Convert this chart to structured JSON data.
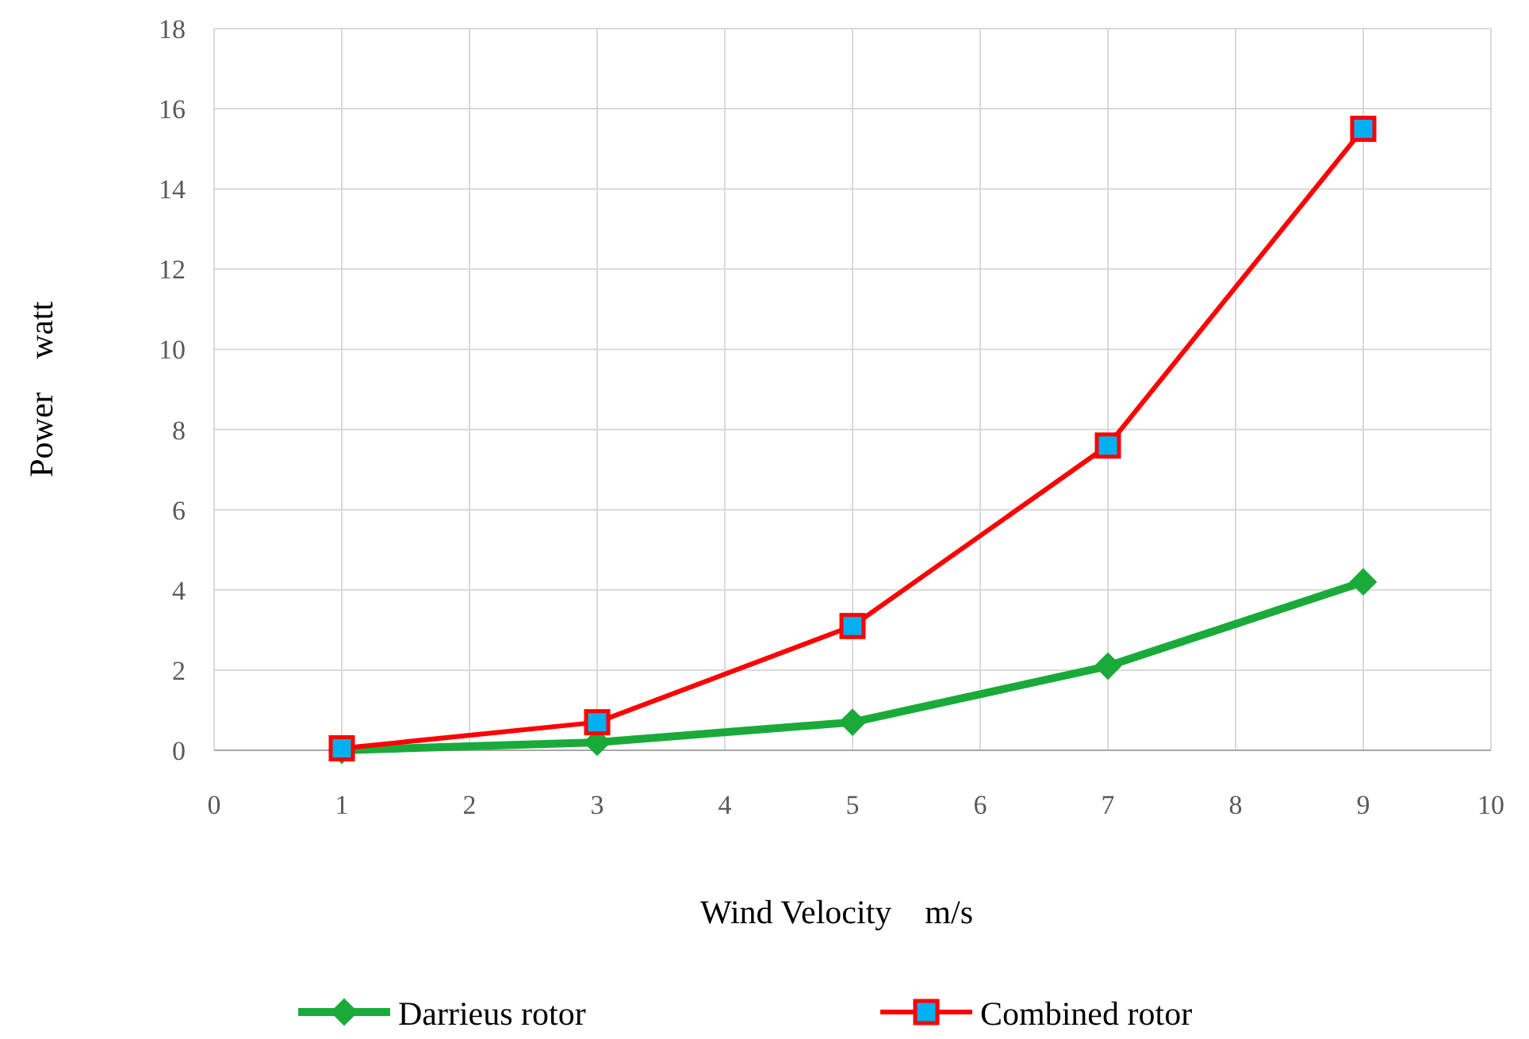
{
  "chart_data": {
    "type": "line",
    "xlabel": "Wind Velocity    m/s",
    "ylabel": "Power    watt",
    "xlim": [
      0,
      10
    ],
    "xticks": [
      0,
      1,
      2,
      3,
      4,
      5,
      6,
      7,
      8,
      9,
      10
    ],
    "ylim": [
      0,
      18
    ],
    "yticks": [
      0,
      2,
      4,
      6,
      8,
      10,
      12,
      14,
      16,
      18
    ],
    "grid": true,
    "legend": "bottom",
    "line_style": "solid",
    "series": [
      {
        "name": "Darrieus rotor",
        "color": "#1aaa3a",
        "marker": "diamond",
        "x": [
          1,
          3,
          5,
          7,
          9
        ],
        "values": [
          0,
          0.2,
          0.7,
          2.1,
          4.2
        ]
      },
      {
        "name": "Combined rotor",
        "color": "#ff0000",
        "marker": "square",
        "x": [
          1,
          3,
          5,
          7,
          9
        ],
        "values": [
          0.05,
          0.7,
          3.1,
          7.6,
          15.5
        ]
      }
    ]
  }
}
